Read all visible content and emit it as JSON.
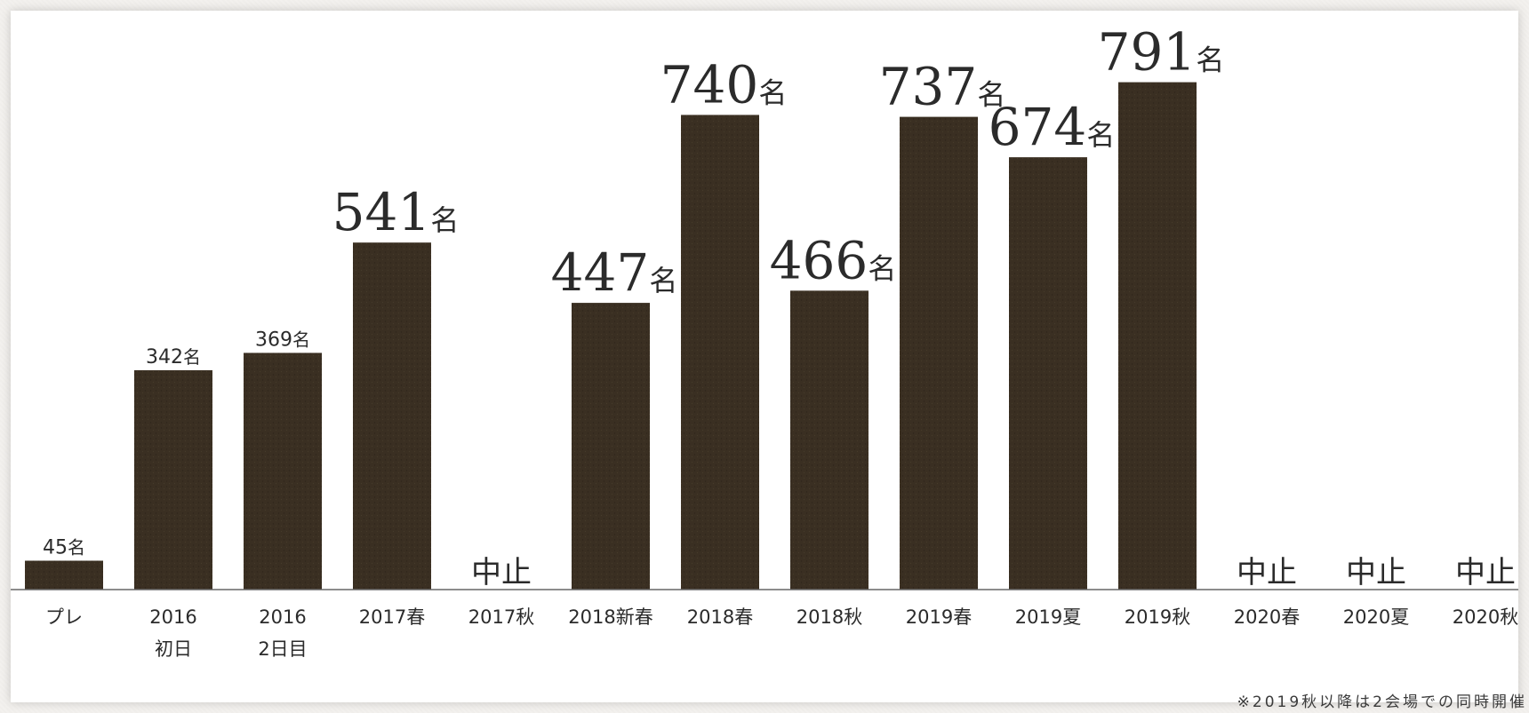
{
  "chart_data": {
    "type": "bar",
    "title": "",
    "xlabel": "",
    "ylabel": "",
    "ylim": [
      0,
      820
    ],
    "bar_color": "#3a2f22",
    "axis_color": "#666666",
    "unit": "名",
    "categories": [
      [
        "プレ"
      ],
      [
        "2016",
        "初日"
      ],
      [
        "2016",
        "2日目"
      ],
      [
        "2017春"
      ],
      [
        "2017秋"
      ],
      [
        "2018新春"
      ],
      [
        "2018春"
      ],
      [
        "2018秋"
      ],
      [
        "2019春"
      ],
      [
        "2019夏"
      ],
      [
        "2019秋"
      ],
      [
        "2020春"
      ],
      [
        "2020夏"
      ],
      [
        "2020秋"
      ]
    ],
    "values": [
      45,
      342,
      369,
      541,
      null,
      447,
      740,
      466,
      737,
      674,
      791,
      null,
      null,
      null
    ],
    "cancelled_label": "中止",
    "label_emphasis": [
      "small",
      "small",
      "small",
      "large",
      "none",
      "large",
      "large",
      "large",
      "large",
      "large",
      "large",
      "none",
      "none",
      "none"
    ]
  },
  "footnote": "※2019秋以降は2会場での同時開催"
}
